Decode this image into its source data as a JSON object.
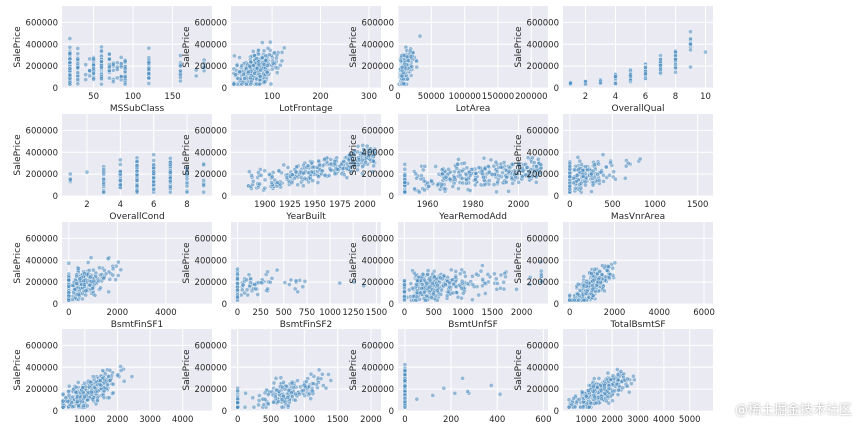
{
  "figure": {
    "watermark": "@稀土掘金技术社区"
  },
  "chart_data": [
    {
      "type": "scatter",
      "xlabel": "MSSubClass",
      "ylabel": "SalePrice",
      "xlim": [
        10,
        200
      ],
      "ylim": [
        0,
        750000
      ],
      "xticks": [
        50,
        100,
        150
      ],
      "yticks": [
        0,
        200000,
        400000,
        600000
      ],
      "x_kind": "categorical",
      "x_cats": [
        20,
        30,
        40,
        45,
        50,
        60,
        70,
        75,
        80,
        85,
        90,
        120,
        160,
        180,
        190
      ],
      "x_weights": [
        25,
        5,
        1,
        2,
        8,
        20,
        5,
        2,
        4,
        2,
        3,
        6,
        4,
        1,
        2
      ],
      "x_spread": 0,
      "y_model": {
        "type": "const",
        "base": 180000,
        "sd": 75000
      }
    },
    {
      "type": "scatter",
      "xlabel": "LotFrontage",
      "ylabel": "SalePrice",
      "xlim": [
        15,
        325
      ],
      "ylim": [
        0,
        750000
      ],
      "xticks": [
        100,
        200,
        300
      ],
      "yticks": [
        0,
        200000,
        400000,
        600000
      ],
      "x_kind": "normal",
      "x_mean": 70,
      "x_sd": 22,
      "x_lo": 21,
      "x_hi": 313,
      "y_model": {
        "type": "linear",
        "a": 60000,
        "b": 1700,
        "sd": 70000
      }
    },
    {
      "type": "scatter",
      "xlabel": "LotArea",
      "ylabel": "SalePrice",
      "xlim": [
        0,
        225000
      ],
      "ylim": [
        0,
        750000
      ],
      "xticks": [
        0,
        50000,
        100000,
        150000,
        200000
      ],
      "yticks": [
        0,
        200000,
        400000,
        600000
      ],
      "x_kind": "lognormal",
      "x_mu": 9.1,
      "x_sigma": 0.45,
      "x_lo": 1300,
      "x_hi": 215000,
      "y_model": {
        "type": "linear",
        "a": 110000,
        "b": 6.5,
        "sd": 60000
      }
    },
    {
      "type": "scatter",
      "xlabel": "OverallQual",
      "ylabel": "SalePrice",
      "xlim": [
        0.5,
        10.5
      ],
      "ylim": [
        0,
        750000
      ],
      "xticks": [
        2,
        4,
        6,
        8,
        10
      ],
      "yticks": [
        0,
        200000,
        400000,
        600000
      ],
      "x_kind": "categorical",
      "x_cats": [
        1,
        2,
        3,
        4,
        5,
        6,
        7,
        8,
        9,
        10
      ],
      "x_weights": [
        1,
        1,
        3,
        8,
        20,
        18,
        16,
        9,
        3,
        1
      ],
      "x_spread": 0,
      "y_model": {
        "type": "exp",
        "a": 28000,
        "r": 0.285,
        "sd_frac": 0.2
      }
    },
    {
      "type": "scatter",
      "xlabel": "OverallCond",
      "ylabel": "SalePrice",
      "xlim": [
        0.5,
        9.5
      ],
      "ylim": [
        0,
        750000
      ],
      "xticks": [
        2,
        4,
        6,
        8
      ],
      "yticks": [
        0,
        200000,
        400000,
        600000
      ],
      "x_kind": "categorical",
      "x_cats": [
        1,
        2,
        3,
        4,
        5,
        6,
        7,
        8,
        9
      ],
      "x_weights": [
        1,
        1,
        3,
        5,
        40,
        15,
        12,
        6,
        2
      ],
      "x_spread": 0,
      "y_model": {
        "type": "const",
        "base": 180000,
        "sd": 70000
      }
    },
    {
      "type": "scatter",
      "xlabel": "YearBuilt",
      "ylabel": "SalePrice",
      "xlim": [
        1866,
        2016
      ],
      "ylim": [
        0,
        750000
      ],
      "xticks": [
        1900,
        1925,
        1950,
        1975,
        2000
      ],
      "yticks": [
        0,
        200000,
        400000,
        600000
      ],
      "x_kind": "skew",
      "x_lo": 1872,
      "x_hi": 2010,
      "x_pow": 0.55,
      "y_model": {
        "type": "exp_offset",
        "x0": 1870,
        "a": 110000,
        "r": 0.009,
        "sd": 50000
      }
    },
    {
      "type": "scatter",
      "xlabel": "YearRemodAdd",
      "ylabel": "SalePrice",
      "xlim": [
        1947,
        2013
      ],
      "ylim": [
        0,
        750000
      ],
      "xticks": [
        1960,
        1980,
        2000
      ],
      "yticks": [
        0,
        200000,
        400000,
        600000
      ],
      "x_kind": "mixed_remod",
      "x_lo": 1950,
      "x_hi": 2010,
      "y_model": {
        "type": "linear_offset",
        "x0": 1950,
        "a": 130000,
        "b": 1800,
        "sd": 60000
      }
    },
    {
      "type": "scatter",
      "xlabel": "MasVnrArea",
      "ylabel": "SalePrice",
      "xlim": [
        -80,
        1680
      ],
      "ylim": [
        0,
        750000
      ],
      "xticks": [
        0,
        500,
        1000,
        1500
      ],
      "yticks": [
        0,
        200000,
        400000,
        600000
      ],
      "x_kind": "zero_inflated",
      "zero_frac": 0.55,
      "x_mu": 5.3,
      "x_sigma": 0.7,
      "x_lo": 1,
      "x_hi": 1600,
      "y_model": {
        "type": "linear",
        "a": 150000,
        "b": 190,
        "sd": 65000
      }
    },
    {
      "type": "scatter",
      "xlabel": "BsmtFinSF1",
      "ylabel": "SalePrice",
      "xlim": [
        -280,
        5900
      ],
      "ylim": [
        0,
        750000
      ],
      "xticks": [
        0,
        2000,
        4000
      ],
      "yticks": [
        0,
        200000,
        400000,
        600000
      ],
      "x_kind": "zero_inflated",
      "zero_frac": 0.3,
      "x_mu": 6.4,
      "x_sigma": 0.6,
      "x_lo": 1,
      "x_hi": 5644,
      "y_model": {
        "type": "linear",
        "a": 140000,
        "b": 75,
        "sd": 60000
      }
    },
    {
      "type": "scatter",
      "xlabel": "BsmtFinSF2",
      "ylabel": "SalePrice",
      "xlim": [
        -70,
        1550
      ],
      "ylim": [
        0,
        750000
      ],
      "xticks": [
        0,
        250,
        500,
        750,
        1000,
        1250,
        1500
      ],
      "yticks": [
        0,
        200000,
        400000,
        600000
      ],
      "x_kind": "zero_inflated",
      "zero_frac": 0.85,
      "x_mu": 5.5,
      "x_sigma": 0.8,
      "x_lo": 20,
      "x_hi": 1474,
      "y_model": {
        "type": "const",
        "base": 175000,
        "sd": 55000
      }
    },
    {
      "type": "scatter",
      "xlabel": "BsmtUnfSF",
      "ylabel": "SalePrice",
      "xlim": [
        -110,
        2450
      ],
      "ylim": [
        0,
        750000
      ],
      "xticks": [
        0,
        500,
        1000,
        1500,
        2000
      ],
      "yticks": [
        0,
        200000,
        400000,
        600000
      ],
      "x_kind": "zero_inflated",
      "zero_frac": 0.07,
      "x_mu": 6.2,
      "x_sigma": 0.7,
      "x_lo": 1,
      "x_hi": 2336,
      "y_model": {
        "type": "linear",
        "a": 150000,
        "b": 35,
        "sd": 70000
      }
    },
    {
      "type": "scatter",
      "xlabel": "TotalBsmtSF",
      "ylabel": "SalePrice",
      "xlim": [
        -300,
        6400
      ],
      "ylim": [
        0,
        750000
      ],
      "xticks": [
        0,
        2000,
        4000,
        6000
      ],
      "yticks": [
        0,
        200000,
        400000,
        600000
      ],
      "x_kind": "zero_inflated",
      "zero_frac": 0.03,
      "x_mean": 1050,
      "x_sd": 380,
      "x_lo": 100,
      "x_hi": 6110,
      "y_model": {
        "type": "linear",
        "a": 20000,
        "b": 150,
        "sd": 55000
      }
    },
    {
      "type": "scatter",
      "xlabel": "",
      "ylabel": "SalePrice",
      "xlim": [
        300,
        4900
      ],
      "ylim": [
        0,
        750000
      ],
      "xticks": [
        1000,
        2000,
        3000,
        4000
      ],
      "yticks": [
        0,
        200000,
        400000,
        600000
      ],
      "x_kind": "normal",
      "x_mean": 1150,
      "x_sd": 380,
      "x_lo": 334,
      "x_hi": 4692,
      "y_model": {
        "type": "linear",
        "a": 20000,
        "b": 140,
        "sd": 55000
      }
    },
    {
      "type": "scatter",
      "xlabel": "",
      "ylabel": "SalePrice",
      "xlim": [
        -100,
        2150
      ],
      "ylim": [
        0,
        750000
      ],
      "xticks": [
        0,
        500,
        1000,
        1500,
        2000
      ],
      "yticks": [
        0,
        200000,
        400000,
        600000
      ],
      "x_kind": "zero_inflated",
      "zero_frac": 0.5,
      "x_mean": 800,
      "x_sd": 250,
      "x_lo": 110,
      "x_hi": 2065,
      "y_model": {
        "type": "linear",
        "a": 40000,
        "b": 170,
        "sd": 55000
      }
    },
    {
      "type": "scatter",
      "xlabel": "",
      "ylabel": "SalePrice",
      "xlim": [
        -30,
        620
      ],
      "ylim": [
        0,
        750000
      ],
      "xticks": [
        0,
        200,
        400,
        600
      ],
      "yticks": [
        0,
        200000,
        400000,
        600000
      ],
      "x_kind": "zero_inflated",
      "zero_frac": 0.97,
      "x_mean": 300,
      "x_sd": 150,
      "x_lo": 50,
      "x_hi": 572,
      "y_model": {
        "type": "const",
        "base": 180000,
        "sd": 75000
      }
    },
    {
      "type": "scatter",
      "xlabel": "",
      "ylabel": "SalePrice",
      "xlim": [
        100,
        5900
      ],
      "ylim": [
        0,
        750000
      ],
      "xticks": [
        1000,
        2000,
        3000,
        4000,
        5000
      ],
      "yticks": [
        0,
        200000,
        400000,
        600000
      ],
      "x_kind": "normal",
      "x_mean": 1500,
      "x_sd": 480,
      "x_lo": 334,
      "x_hi": 5642,
      "y_model": {
        "type": "linear",
        "a": 10000,
        "b": 110,
        "sd": 55000
      }
    }
  ]
}
